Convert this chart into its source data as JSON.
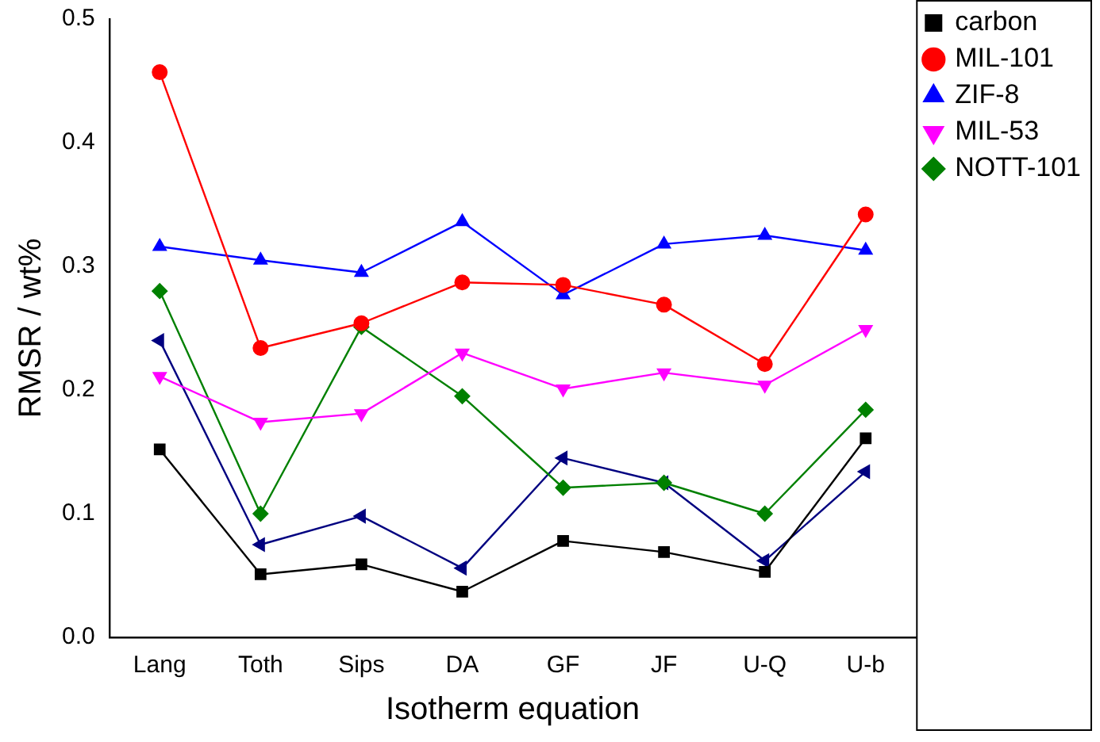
{
  "chart_data": {
    "type": "line",
    "xlabel": "Isotherm equation",
    "ylabel": "RMSR / wt%",
    "categories": [
      "Lang",
      "Toth",
      "Sips",
      "DA",
      "GF",
      "JF",
      "U-Q",
      "U-b"
    ],
    "ylim": [
      0,
      0.5
    ],
    "yticks": [
      {
        "value": 0,
        "label": "0.0"
      },
      {
        "value": 0.1,
        "label": "0.1"
      },
      {
        "value": 0.2,
        "label": "0.2"
      },
      {
        "value": 0.3,
        "label": "0.3"
      },
      {
        "value": 0.4,
        "label": "0.4"
      },
      {
        "value": 0.5,
        "label": "0.5"
      }
    ],
    "grid": false,
    "legend": "top right",
    "line_style": "solid",
    "series": [
      {
        "name": "carbon",
        "color": "#000000",
        "marker": "square",
        "values": [
          0.152,
          0.051,
          0.059,
          0.037,
          0.078,
          0.069,
          0.053,
          0.161
        ]
      },
      {
        "name": "MIL-101",
        "color": "#ff0000",
        "marker": "circle",
        "values": [
          0.457,
          0.234,
          0.254,
          0.287,
          0.285,
          0.269,
          0.221,
          0.342
        ]
      },
      {
        "name": "ZIF-8",
        "color": "#0000ff",
        "marker": "triangle",
        "values": [
          0.316,
          0.305,
          0.295,
          0.336,
          0.277,
          0.318,
          0.325,
          0.313
        ]
      },
      {
        "name": "MIL-53",
        "color": "#ff00ff",
        "marker": "triangle-down",
        "values": [
          0.211,
          0.174,
          0.181,
          0.23,
          0.201,
          0.214,
          0.204,
          0.249
        ]
      },
      {
        "name": "NOTT-101",
        "color": "#008000",
        "marker": "diamond",
        "values": [
          0.28,
          0.1,
          0.251,
          0.195,
          0.121,
          0.125,
          0.1,
          0.184
        ]
      },
      {
        "color": "#000080",
        "marker": "triangle-left",
        "values": [
          0.24,
          0.075,
          0.098,
          0.056,
          0.145,
          0.125,
          0.062,
          0.134
        ]
      }
    ]
  }
}
